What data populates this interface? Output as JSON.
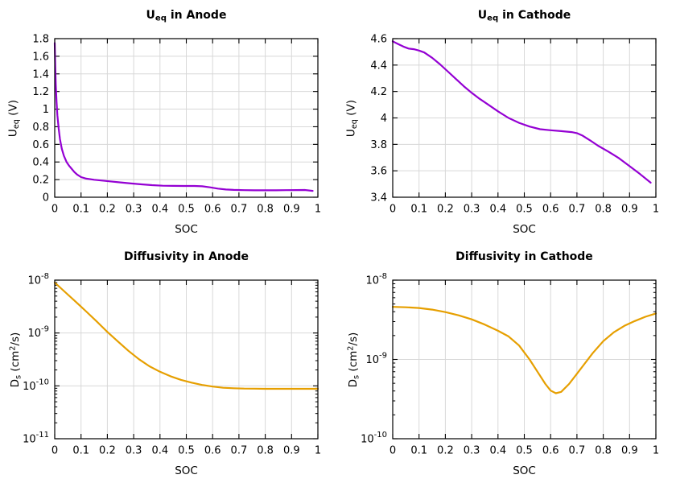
{
  "style": {
    "background": "#ffffff",
    "grid_color": "#d8d8d8",
    "frame_color": "#000000",
    "purple": "#9400d3",
    "orange": "#e69f00"
  },
  "chart_data": [
    {
      "id": "ueq-anode",
      "type": "line",
      "title": [
        {
          "t": "U"
        },
        {
          "t": "eq",
          "s": "sub"
        },
        {
          "t": " in Anode"
        }
      ],
      "xlabel": "SOC",
      "ylabel": [
        {
          "t": "U"
        },
        {
          "t": "eq",
          "s": "sub"
        },
        {
          "t": " (V)"
        }
      ],
      "color": "#9400d3",
      "grid": true,
      "legend": "none",
      "y_scale": "linear",
      "xlim": [
        0,
        1
      ],
      "ylim": [
        0,
        1.8
      ],
      "x_ticks": [
        0,
        0.1,
        0.2,
        0.3,
        0.4,
        0.5,
        0.6,
        0.7,
        0.8,
        0.9,
        1
      ],
      "x_tick_labels": [
        "0",
        "0.1",
        "0.2",
        "0.3",
        "0.4",
        "0.5",
        "0.6",
        "0.7",
        "0.8",
        "0.9",
        "1"
      ],
      "y_ticks": [
        0,
        0.2,
        0.4,
        0.6,
        0.8,
        1,
        1.2,
        1.4,
        1.6,
        1.8
      ],
      "y_tick_labels": [
        "0",
        "0.2",
        "0.4",
        "0.6",
        "0.8",
        "1",
        "1.2",
        "1.4",
        "1.6",
        "1.8"
      ],
      "points": [
        [
          0,
          1.75
        ],
        [
          0.002,
          1.48
        ],
        [
          0.004,
          1.28
        ],
        [
          0.007,
          1.08
        ],
        [
          0.01,
          0.93
        ],
        [
          0.015,
          0.78
        ],
        [
          0.02,
          0.66
        ],
        [
          0.027,
          0.55
        ],
        [
          0.035,
          0.47
        ],
        [
          0.045,
          0.4
        ],
        [
          0.055,
          0.355
        ],
        [
          0.065,
          0.32
        ],
        [
          0.075,
          0.285
        ],
        [
          0.085,
          0.258
        ],
        [
          0.1,
          0.228
        ],
        [
          0.12,
          0.211
        ],
        [
          0.15,
          0.198
        ],
        [
          0.18,
          0.189
        ],
        [
          0.21,
          0.18
        ],
        [
          0.25,
          0.168
        ],
        [
          0.29,
          0.156
        ],
        [
          0.33,
          0.146
        ],
        [
          0.37,
          0.137
        ],
        [
          0.41,
          0.131
        ],
        [
          0.45,
          0.129
        ],
        [
          0.49,
          0.128
        ],
        [
          0.53,
          0.128
        ],
        [
          0.56,
          0.124
        ],
        [
          0.59,
          0.112
        ],
        [
          0.62,
          0.098
        ],
        [
          0.65,
          0.088
        ],
        [
          0.68,
          0.083
        ],
        [
          0.72,
          0.08
        ],
        [
          0.76,
          0.079
        ],
        [
          0.8,
          0.079
        ],
        [
          0.84,
          0.079
        ],
        [
          0.88,
          0.08
        ],
        [
          0.92,
          0.081
        ],
        [
          0.95,
          0.082
        ],
        [
          0.98,
          0.072
        ]
      ]
    },
    {
      "id": "ueq-cathode",
      "type": "line",
      "title": [
        {
          "t": "U"
        },
        {
          "t": "eq",
          "s": "sub"
        },
        {
          "t": " in Cathode"
        }
      ],
      "xlabel": "SOC",
      "ylabel": [
        {
          "t": "U"
        },
        {
          "t": "eq",
          "s": "sub"
        },
        {
          "t": " (V)"
        }
      ],
      "color": "#9400d3",
      "grid": true,
      "legend": "none",
      "y_scale": "linear",
      "xlim": [
        0,
        1
      ],
      "ylim": [
        3.4,
        4.6
      ],
      "x_ticks": [
        0,
        0.1,
        0.2,
        0.3,
        0.4,
        0.5,
        0.6,
        0.7,
        0.8,
        0.9,
        1
      ],
      "x_tick_labels": [
        "0",
        "0.1",
        "0.2",
        "0.3",
        "0.4",
        "0.5",
        "0.6",
        "0.7",
        "0.8",
        "0.9",
        "1"
      ],
      "y_ticks": [
        3.4,
        3.6,
        3.8,
        4,
        4.2,
        4.4,
        4.6
      ],
      "y_tick_labels": [
        "3.4",
        "3.6",
        "3.8",
        "4",
        "4.2",
        "4.4",
        "4.6"
      ],
      "points": [
        [
          0,
          4.58
        ],
        [
          0.02,
          4.56
        ],
        [
          0.04,
          4.54
        ],
        [
          0.06,
          4.525
        ],
        [
          0.08,
          4.52
        ],
        [
          0.1,
          4.51
        ],
        [
          0.12,
          4.495
        ],
        [
          0.15,
          4.455
        ],
        [
          0.18,
          4.405
        ],
        [
          0.21,
          4.35
        ],
        [
          0.24,
          4.295
        ],
        [
          0.27,
          4.24
        ],
        [
          0.3,
          4.19
        ],
        [
          0.33,
          4.145
        ],
        [
          0.36,
          4.105
        ],
        [
          0.4,
          4.05
        ],
        [
          0.44,
          4.0
        ],
        [
          0.48,
          3.963
        ],
        [
          0.52,
          3.935
        ],
        [
          0.56,
          3.915
        ],
        [
          0.6,
          3.907
        ],
        [
          0.64,
          3.9
        ],
        [
          0.68,
          3.893
        ],
        [
          0.7,
          3.885
        ],
        [
          0.72,
          3.868
        ],
        [
          0.75,
          3.83
        ],
        [
          0.78,
          3.79
        ],
        [
          0.82,
          3.745
        ],
        [
          0.86,
          3.695
        ],
        [
          0.9,
          3.635
        ],
        [
          0.94,
          3.575
        ],
        [
          0.98,
          3.51
        ]
      ]
    },
    {
      "id": "diffusivity-anode",
      "type": "line",
      "title": [
        {
          "t": "Diffusivity in Anode"
        }
      ],
      "xlabel": "SOC",
      "ylabel": [
        {
          "t": "D"
        },
        {
          "t": "s",
          "s": "sub"
        },
        {
          "t": " (cm"
        },
        {
          "t": "2",
          "s": "sup"
        },
        {
          "t": "/s)"
        }
      ],
      "color": "#e69f00",
      "grid": true,
      "legend": "none",
      "y_scale": "log",
      "xlim": [
        0,
        1
      ],
      "ylim": [
        1e-11,
        1e-08
      ],
      "x_ticks": [
        0,
        0.1,
        0.2,
        0.3,
        0.4,
        0.5,
        0.6,
        0.7,
        0.8,
        0.9,
        1
      ],
      "x_tick_labels": [
        "0",
        "0.1",
        "0.2",
        "0.3",
        "0.4",
        "0.5",
        "0.6",
        "0.7",
        "0.8",
        "0.9",
        "1"
      ],
      "y_ticks": [
        1e-11,
        1e-10,
        1e-09,
        1e-08
      ],
      "y_tick_labels": [
        "10^-11",
        "10^-10",
        "10^-9",
        "10^-8"
      ],
      "points": [
        [
          0,
          9e-09
        ],
        [
          0.04,
          5.9e-09
        ],
        [
          0.08,
          3.9e-09
        ],
        [
          0.12,
          2.55e-09
        ],
        [
          0.16,
          1.65e-09
        ],
        [
          0.2,
          1.05e-09
        ],
        [
          0.24,
          6.9e-10
        ],
        [
          0.28,
          4.6e-10
        ],
        [
          0.32,
          3.2e-10
        ],
        [
          0.36,
          2.35e-10
        ],
        [
          0.4,
          1.85e-10
        ],
        [
          0.44,
          1.52e-10
        ],
        [
          0.48,
          1.3e-10
        ],
        [
          0.52,
          1.15e-10
        ],
        [
          0.56,
          1.04e-10
        ],
        [
          0.6,
          9.7e-11
        ],
        [
          0.64,
          9.2e-11
        ],
        [
          0.68,
          9e-11
        ],
        [
          0.72,
          8.9e-11
        ],
        [
          0.76,
          8.85e-11
        ],
        [
          0.8,
          8.8e-11
        ],
        [
          0.85,
          8.8e-11
        ],
        [
          0.9,
          8.8e-11
        ],
        [
          0.95,
          8.8e-11
        ],
        [
          1.0,
          8.8e-11
        ]
      ]
    },
    {
      "id": "diffusivity-cathode",
      "type": "line",
      "title": [
        {
          "t": "Diffusivity in Cathode"
        }
      ],
      "xlabel": "SOC",
      "ylabel": [
        {
          "t": "D"
        },
        {
          "t": "s",
          "s": "sub"
        },
        {
          "t": " (cm"
        },
        {
          "t": "2",
          "s": "sup"
        },
        {
          "t": "/s)"
        }
      ],
      "color": "#e69f00",
      "grid": true,
      "legend": "none",
      "y_scale": "log",
      "xlim": [
        0,
        1
      ],
      "ylim": [
        1e-10,
        1e-08
      ],
      "x_ticks": [
        0,
        0.1,
        0.2,
        0.3,
        0.4,
        0.5,
        0.6,
        0.7,
        0.8,
        0.9,
        1
      ],
      "x_tick_labels": [
        "0",
        "0.1",
        "0.2",
        "0.3",
        "0.4",
        "0.5",
        "0.6",
        "0.7",
        "0.8",
        "0.9",
        "1"
      ],
      "y_ticks": [
        1e-10,
        1e-09,
        1e-08
      ],
      "y_tick_labels": [
        "10^-10",
        "10^-9",
        "10^-8"
      ],
      "points": [
        [
          0,
          4.6e-09
        ],
        [
          0.05,
          4.55e-09
        ],
        [
          0.1,
          4.45e-09
        ],
        [
          0.15,
          4.25e-09
        ],
        [
          0.2,
          3.95e-09
        ],
        [
          0.25,
          3.6e-09
        ],
        [
          0.3,
          3.2e-09
        ],
        [
          0.35,
          2.75e-09
        ],
        [
          0.4,
          2.3e-09
        ],
        [
          0.44,
          1.95e-09
        ],
        [
          0.48,
          1.5e-09
        ],
        [
          0.52,
          1e-09
        ],
        [
          0.55,
          7e-10
        ],
        [
          0.58,
          4.9e-10
        ],
        [
          0.6,
          4.05e-10
        ],
        [
          0.62,
          3.75e-10
        ],
        [
          0.64,
          3.9e-10
        ],
        [
          0.67,
          4.9e-10
        ],
        [
          0.7,
          6.6e-10
        ],
        [
          0.73,
          8.9e-10
        ],
        [
          0.76,
          1.2e-09
        ],
        [
          0.8,
          1.7e-09
        ],
        [
          0.84,
          2.2e-09
        ],
        [
          0.88,
          2.65e-09
        ],
        [
          0.92,
          3.05e-09
        ],
        [
          0.96,
          3.45e-09
        ],
        [
          1.0,
          3.8e-09
        ]
      ]
    }
  ]
}
